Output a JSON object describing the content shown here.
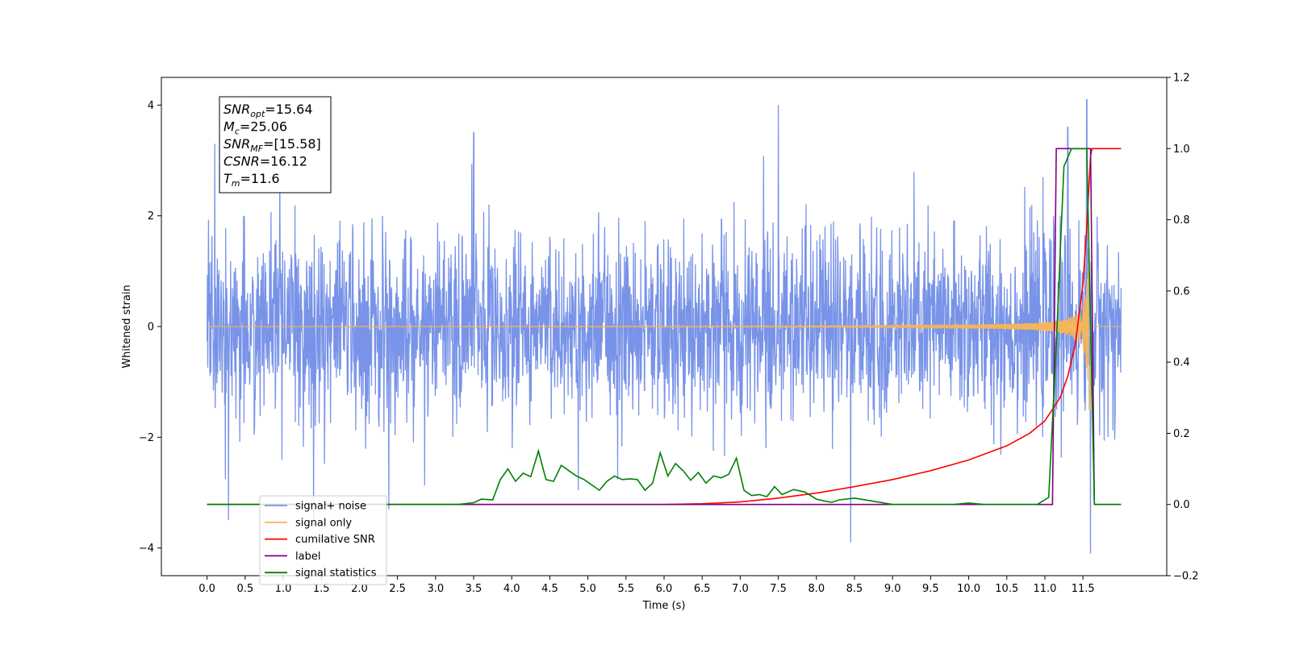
{
  "chart_data": {
    "type": "line",
    "xlabel": "Time (s)",
    "ylabel": "Whitened strain",
    "xlim": [
      -0.6,
      12.6
    ],
    "ylim_left": [
      -4.5,
      4.5
    ],
    "ylim_right": [
      -0.2,
      1.2
    ],
    "x_ticks": [
      "0.0",
      "0.5",
      "1.0",
      "1.5",
      "2.0",
      "2.5",
      "3.0",
      "3.5",
      "4.0",
      "4.5",
      "5.0",
      "5.5",
      "6.0",
      "6.5",
      "7.0",
      "7.5",
      "8.0",
      "8.5",
      "9.0",
      "9.5",
      "10.0",
      "10.5",
      "11.0",
      "11.5"
    ],
    "y_ticks_left": [
      "−4",
      "−2",
      "0",
      "2",
      "4"
    ],
    "y_ticks_right": [
      "−0.2",
      "0.0",
      "0.2",
      "0.4",
      "0.6",
      "0.8",
      "1.0",
      "1.2"
    ],
    "grid": false,
    "legend_position": "lower-left",
    "stats_box": [
      {
        "base": "SNR",
        "sub": "opt",
        "value": "=15.64"
      },
      {
        "base": "M",
        "sub": "c",
        "value": "=25.06"
      },
      {
        "base": "SNR",
        "sub": "MF",
        "value": "=[15.58]"
      },
      {
        "base": "CSNR",
        "sub": "",
        "value": "=16.12"
      },
      {
        "base": "T",
        "sub": "m",
        "value": "=11.6"
      }
    ],
    "series": [
      {
        "name": "signal+ noise",
        "color": "#7893e8",
        "axis": "left",
        "kind": "noise",
        "x_range": [
          0,
          12.0
        ],
        "envelope": 2.2,
        "notable_peaks": [
          [
            0.1,
            3.3
          ],
          [
            0.28,
            -3.5
          ],
          [
            1.4,
            -3.6
          ],
          [
            3.5,
            3.5
          ],
          [
            7.5,
            4.0
          ],
          [
            8.45,
            -3.9
          ],
          [
            11.3,
            3.6
          ],
          [
            11.55,
            4.1
          ],
          [
            11.6,
            -4.1
          ]
        ]
      },
      {
        "name": "signal only",
        "color": "#f5b55b",
        "axis": "left",
        "kind": "chirp",
        "x_range": [
          0,
          12.0
        ],
        "merger_time": 11.6,
        "peak_amplitude": 1.8
      },
      {
        "name": "cumilative SNR",
        "color": "#ff0000",
        "axis": "right",
        "x": [
          0.0,
          6.0,
          6.5,
          7.0,
          7.5,
          8.0,
          8.5,
          9.0,
          9.5,
          10.0,
          10.5,
          10.8,
          11.0,
          11.2,
          11.3,
          11.4,
          11.5,
          11.55,
          11.58,
          11.6,
          11.62,
          11.65,
          12.0
        ],
        "y": [
          0.0,
          0.0,
          0.002,
          0.007,
          0.018,
          0.032,
          0.05,
          0.07,
          0.095,
          0.125,
          0.165,
          0.2,
          0.235,
          0.3,
          0.36,
          0.45,
          0.62,
          0.78,
          0.9,
          0.98,
          1.0,
          1.0,
          1.0
        ]
      },
      {
        "name": "label",
        "color": "#800080",
        "axis": "right",
        "x": [
          0.0,
          11.1,
          11.15,
          11.6,
          11.65,
          12.0
        ],
        "y": [
          0.0,
          0.0,
          1.0,
          1.0,
          0.0,
          0.0
        ]
      },
      {
        "name": "signal statistics",
        "color": "#008000",
        "axis": "right",
        "x": [
          0.0,
          3.3,
          3.5,
          3.6,
          3.75,
          3.85,
          3.95,
          4.05,
          4.15,
          4.25,
          4.35,
          4.45,
          4.55,
          4.65,
          4.75,
          4.85,
          4.95,
          5.05,
          5.15,
          5.25,
          5.35,
          5.45,
          5.55,
          5.65,
          5.75,
          5.85,
          5.95,
          6.05,
          6.15,
          6.25,
          6.35,
          6.45,
          6.55,
          6.65,
          6.75,
          6.85,
          6.95,
          7.05,
          7.15,
          7.25,
          7.35,
          7.45,
          7.55,
          7.7,
          7.85,
          8.0,
          8.1,
          8.2,
          8.3,
          8.5,
          9.0,
          9.8,
          10.0,
          10.2,
          10.5,
          10.9,
          11.05,
          11.15,
          11.25,
          11.35,
          11.45,
          11.55,
          11.6,
          11.65,
          12.0
        ],
        "y": [
          0.0,
          0.0,
          0.005,
          0.015,
          0.013,
          0.07,
          0.1,
          0.065,
          0.088,
          0.078,
          0.15,
          0.07,
          0.065,
          0.11,
          0.095,
          0.08,
          0.07,
          0.055,
          0.04,
          0.065,
          0.08,
          0.07,
          0.072,
          0.07,
          0.04,
          0.06,
          0.145,
          0.08,
          0.115,
          0.095,
          0.068,
          0.09,
          0.06,
          0.08,
          0.075,
          0.085,
          0.13,
          0.04,
          0.025,
          0.028,
          0.022,
          0.05,
          0.028,
          0.042,
          0.035,
          0.015,
          0.01,
          0.006,
          0.013,
          0.018,
          0.0,
          0.0,
          0.004,
          0.0,
          0.0,
          0.0,
          0.02,
          0.45,
          0.95,
          1.0,
          1.0,
          1.0,
          0.5,
          0.0,
          0.0
        ]
      }
    ]
  }
}
